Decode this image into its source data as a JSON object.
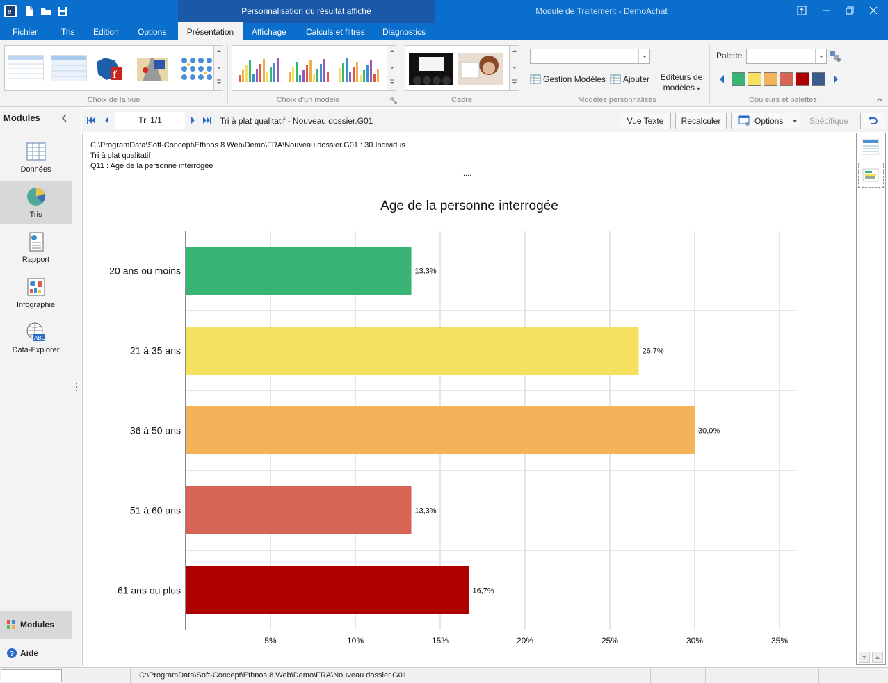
{
  "window": {
    "app_title": "Module de Traitement - DemoAchat",
    "context_title": "Personnalisation du résultat affiché",
    "accent": "#0a6fcc",
    "context_color": "#1a58a8"
  },
  "tabs": [
    {
      "label": "Fichier"
    },
    {
      "label": "Tris"
    },
    {
      "label": "Edition"
    },
    {
      "label": "Options"
    },
    {
      "label": "Présentation"
    },
    {
      "label": "Affichage"
    },
    {
      "label": "Calculs et filtres"
    },
    {
      "label": "Diagnostics"
    }
  ],
  "ribbon": {
    "groups": {
      "view": "Choix de la vue",
      "model": "Choix d'un modèle",
      "frame": "Cadre",
      "custom": "Modèles personnalisés",
      "colors": "Couleurs et palettes"
    },
    "gestion": "Gestion Modèles",
    "ajouter": "Ajouter",
    "editeurs_line1": "Editeurs de",
    "editeurs_line2": "modèles",
    "palette_label": "Palette",
    "swatches": [
      "#38b574",
      "#f6e060",
      "#f2b359",
      "#d66555",
      "#ae0000",
      "#3c5a8c"
    ]
  },
  "nav": {
    "header": "Modules",
    "items": [
      {
        "label": "Données"
      },
      {
        "label": "Tris"
      },
      {
        "label": "Rapport"
      },
      {
        "label": "Infographie"
      },
      {
        "label": "Data-Explorer"
      }
    ],
    "bottom_modules": "Modules",
    "aide": "Aide"
  },
  "toolbar": {
    "page": "Tri 1/1",
    "title": "Tri à plat qualitatif - Nouveau dossier.G01",
    "vue_texte": "Vue Texte",
    "recalculer": "Recalculer",
    "options": "Options",
    "specifique": "Spécifique"
  },
  "doc": {
    "line1": "C:\\ProgramData\\Soft-Concept\\Ethnos 8 Web\\Demo\\FRA\\Nouveau dossier.G01 : 30 Individus",
    "line2": "Tri à plat qualitatif",
    "line3": "Q11  : Age de la personne interrogée",
    "dots": "....."
  },
  "chart_data": {
    "type": "bar",
    "orientation": "horizontal",
    "title": "Age de la personne interrogée",
    "categories": [
      "20 ans ou moins",
      "21 à 35 ans",
      "36 à 50 ans",
      "51 à 60 ans",
      "61 ans ou plus"
    ],
    "values": [
      13.3,
      26.7,
      30.0,
      13.3,
      16.7
    ],
    "data_labels": [
      "13,3%",
      "26,7%",
      "30,0%",
      "13,3%",
      "16,7%"
    ],
    "colors": [
      "#38b574",
      "#f6e060",
      "#f2b359",
      "#d66555",
      "#ae0000"
    ],
    "xlim": [
      0,
      36
    ],
    "xticks": [
      5,
      10,
      15,
      20,
      25,
      30,
      35
    ],
    "xtick_labels": [
      "5%",
      "10%",
      "15%",
      "20%",
      "25%",
      "30%",
      "35%"
    ],
    "grid": true
  },
  "status": {
    "path": "C:\\ProgramData\\Soft-Concept\\Ethnos 8 Web\\Demo\\FRA\\Nouveau dossier.G01"
  }
}
